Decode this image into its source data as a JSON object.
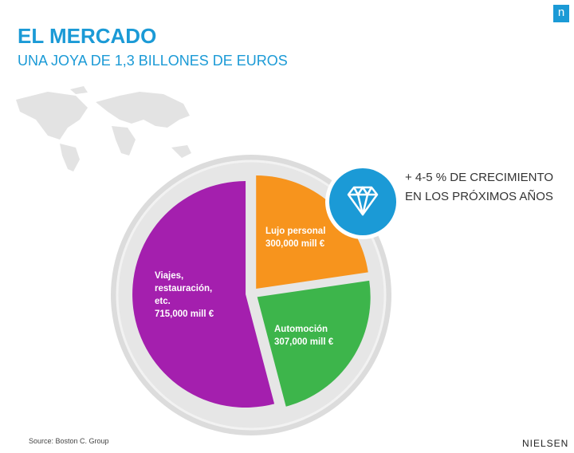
{
  "chart_data": {
    "type": "pie",
    "title": "EL MERCADO",
    "subtitle": "UNA JOYA DE 1,3 BILLONES DE EUROS",
    "categories": [
      "Lujo personal",
      "Automoción",
      "Viajes, restauración, etc."
    ],
    "values": [
      300000,
      307000,
      715000
    ],
    "value_labels": [
      "300,000 mill €",
      "307,000 mill €",
      "715,000 mill €"
    ],
    "colors": [
      "#f7941d",
      "#3db54b",
      "#a41fae"
    ],
    "annotation_lines": [
      "+ 4-5 % DE CRECIMIENTO",
      "EN LOS PRÓXIMOS AÑOS"
    ],
    "source": "Source: Boston C. Group",
    "brand": "NIELSEN",
    "logo": "n"
  }
}
